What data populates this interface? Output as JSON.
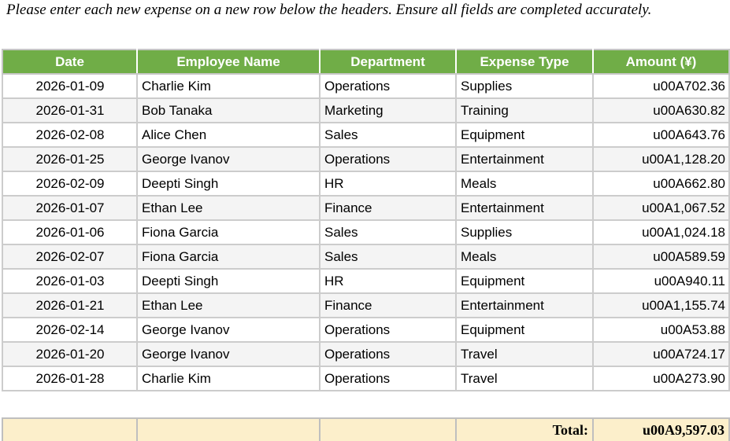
{
  "instruction_banner": "Please enter each new expense on a new row below the headers. Ensure all fields are completed accurately.",
  "table": {
    "columns": [
      "Date",
      "Employee Name",
      "Department",
      "Expense Type",
      "Amount (¥)"
    ],
    "rows": [
      {
        "date": "2026-01-09",
        "employee": "Charlie Kim",
        "department": "Operations",
        "expense_type": "Supplies",
        "amount": "u00A702.36"
      },
      {
        "date": "2026-01-31",
        "employee": "Bob Tanaka",
        "department": "Marketing",
        "expense_type": "Training",
        "amount": "u00A630.82"
      },
      {
        "date": "2026-02-08",
        "employee": "Alice Chen",
        "department": "Sales",
        "expense_type": "Equipment",
        "amount": "u00A643.76"
      },
      {
        "date": "2026-01-25",
        "employee": "George Ivanov",
        "department": "Operations",
        "expense_type": "Entertainment",
        "amount": "u00A1,128.20"
      },
      {
        "date": "2026-02-09",
        "employee": "Deepti Singh",
        "department": "HR",
        "expense_type": "Meals",
        "amount": "u00A662.80"
      },
      {
        "date": "2026-01-07",
        "employee": "Ethan Lee",
        "department": "Finance",
        "expense_type": "Entertainment",
        "amount": "u00A1,067.52"
      },
      {
        "date": "2026-01-06",
        "employee": "Fiona Garcia",
        "department": "Sales",
        "expense_type": "Supplies",
        "amount": "u00A1,024.18"
      },
      {
        "date": "2026-02-07",
        "employee": "Fiona Garcia",
        "department": "Sales",
        "expense_type": "Meals",
        "amount": "u00A589.59"
      },
      {
        "date": "2026-01-03",
        "employee": "Deepti Singh",
        "department": "HR",
        "expense_type": "Equipment",
        "amount": "u00A940.11"
      },
      {
        "date": "2026-01-21",
        "employee": "Ethan Lee",
        "department": "Finance",
        "expense_type": "Entertainment",
        "amount": "u00A1,155.74"
      },
      {
        "date": "2026-02-14",
        "employee": "George Ivanov",
        "department": "Operations",
        "expense_type": "Equipment",
        "amount": "u00A53.88"
      },
      {
        "date": "2026-01-20",
        "employee": "George Ivanov",
        "department": "Operations",
        "expense_type": "Travel",
        "amount": "u00A724.17"
      },
      {
        "date": "2026-01-28",
        "employee": "Charlie Kim",
        "department": "Operations",
        "expense_type": "Travel",
        "amount": "u00A273.90"
      }
    ]
  },
  "total_row": {
    "label": "Total:",
    "amount": "u00A9,597.03"
  },
  "colors": {
    "header_bg": "#70AD47",
    "header_text": "#FFFFFF",
    "row_alt_bg": "#F4F4F4",
    "grid_line": "#CCCCCC",
    "total_bg": "#FCEFCB"
  }
}
